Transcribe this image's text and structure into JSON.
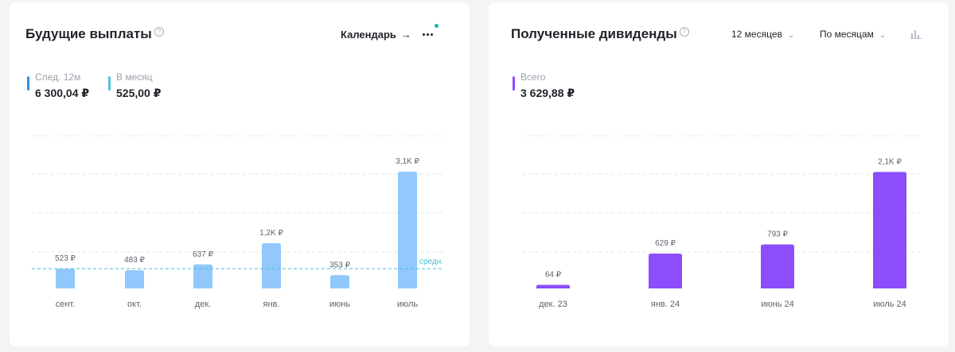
{
  "future_payouts": {
    "title": "Будущие выплаты",
    "help": "?",
    "calendar_label": "Календарь",
    "calendar_arrow": "→",
    "stats": [
      {
        "label": "След. 12м",
        "value": "6 300,04 ₽",
        "color": "#2f8fe6"
      },
      {
        "label": "В месяц",
        "value": "525,00 ₽",
        "color": "#4ec3d8"
      }
    ],
    "bar_color": "#92c8fb",
    "avg_color": "#4bbfd0",
    "avg_label": "средн.",
    "grid_color": "#e3e6ea"
  },
  "received_dividends": {
    "title": "Полученные дивиденды",
    "help": "?",
    "period_dropdown": "12 месяцев",
    "group_dropdown": "По месяцам",
    "chevron": "⌄",
    "stats": [
      {
        "label": "Всего",
        "value": "3 629,88 ₽",
        "color": "#8c4dfc"
      }
    ],
    "bar_color": "#8c4dfc",
    "grid_color": "#e3e6ea"
  },
  "chart_data": [
    {
      "type": "bar",
      "title": "Будущие выплаты",
      "categories": [
        "сент.",
        "окт.",
        "дек.",
        "янв.",
        "июнь",
        "июль"
      ],
      "values": [
        523,
        483,
        637,
        1200,
        353,
        3100
      ],
      "value_labels": [
        "523 ₽",
        "483 ₽",
        "637 ₽",
        "1,2K ₽",
        "353 ₽",
        "3,1K ₽"
      ],
      "reference_line": {
        "label": "средн.",
        "value": 525
      },
      "ylim": [
        0,
        4050
      ],
      "grid": true
    },
    {
      "type": "bar",
      "title": "Полученные дивиденды",
      "categories": [
        "дек. 23",
        "янв. 24",
        "июнь 24",
        "июль 24"
      ],
      "values": [
        64,
        629,
        793,
        2100
      ],
      "value_labels": [
        "64 ₽",
        "629 ₽",
        "793 ₽",
        "2,1K ₽"
      ],
      "ylim": [
        0,
        2750
      ],
      "grid": true
    }
  ]
}
